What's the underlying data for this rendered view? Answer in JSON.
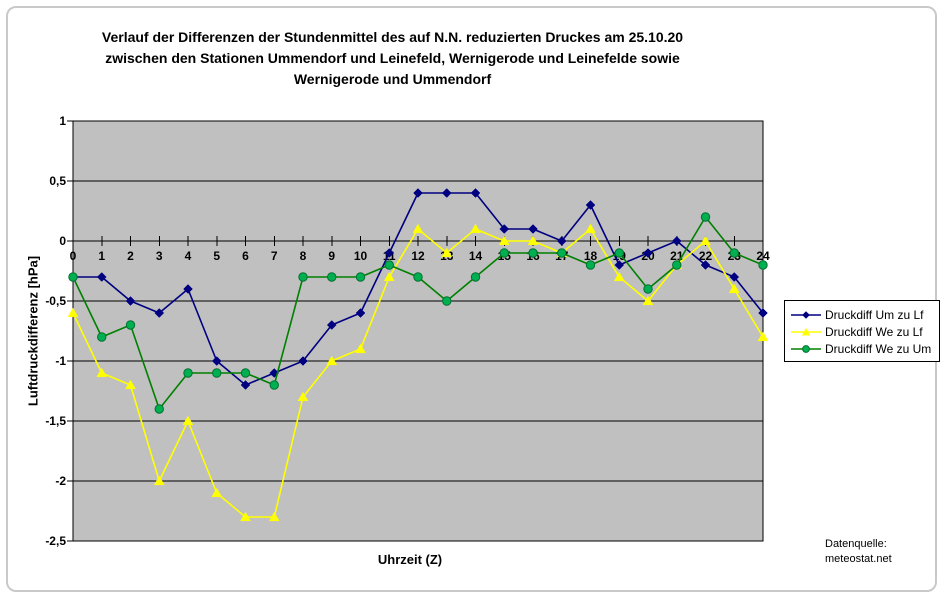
{
  "header": {
    "title_lines": [
      "Verlauf der Differenzen der Stundenmittel des auf N.N. reduzierten Druckes am 25.10.20",
      "zwischen den Stationen Ummendorf und Leinefeld, Wernigerode und Leinefelde sowie",
      "Wernigerode und Ummendorf"
    ]
  },
  "chart_data": {
    "type": "line",
    "title": "Verlauf der Differenzen der Stundenmittel des auf N.N. reduzierten Druckes am 25.10.20 zwischen den Stationen Ummendorf und Leinefeld, Wernigerode und Leinefelde sowie Wernigerode und Ummendorf",
    "xlabel": "Uhrzeit (Z)",
    "ylabel": "Luftdruckdifferenz [hPa]",
    "x": [
      0,
      1,
      2,
      3,
      4,
      5,
      6,
      7,
      8,
      9,
      10,
      11,
      12,
      13,
      14,
      15,
      16,
      17,
      18,
      19,
      20,
      21,
      22,
      23,
      24
    ],
    "series": [
      {
        "name": "Druckdiff Um zu Lf",
        "color": "#000080",
        "marker": "diamond",
        "values": [
          -0.3,
          -0.3,
          -0.5,
          -0.6,
          -0.4,
          -1.0,
          -1.2,
          -1.1,
          -1.0,
          -0.7,
          -0.6,
          -0.1,
          0.4,
          0.4,
          0.4,
          0.1,
          0.1,
          0.0,
          0.3,
          -0.2,
          -0.1,
          0.0,
          -0.2,
          -0.3,
          -0.6
        ]
      },
      {
        "name": "Druckdiff We zu Lf",
        "color": "#FFFF00",
        "marker": "triangle",
        "values": [
          -0.6,
          -1.1,
          -1.2,
          -2.0,
          -1.5,
          -2.1,
          -2.3,
          -2.3,
          -1.3,
          -1.0,
          -0.9,
          -0.3,
          0.1,
          -0.1,
          0.1,
          0.0,
          0.0,
          -0.1,
          0.1,
          -0.3,
          -0.5,
          -0.2,
          0.0,
          -0.4,
          -0.8
        ]
      },
      {
        "name": "Druckdiff We zu Um",
        "color": "#008000",
        "marker": "circle",
        "marker_fill": "#00B050",
        "values": [
          -0.3,
          -0.8,
          -0.7,
          -1.4,
          -1.1,
          -1.1,
          -1.1,
          -1.2,
          -0.3,
          -0.3,
          -0.3,
          -0.2,
          -0.3,
          -0.5,
          -0.3,
          -0.1,
          -0.1,
          -0.1,
          -0.2,
          -0.1,
          -0.4,
          -0.2,
          0.2,
          -0.1,
          -0.2
        ]
      }
    ],
    "ylim": [
      -2.5,
      1
    ],
    "y_ticks": [
      1,
      0.5,
      0,
      -0.5,
      -1,
      -1.5,
      -2,
      -2.5
    ],
    "y_tick_labels": [
      "1",
      "0,5",
      "0",
      "-0,5",
      "-1",
      "-1,5",
      "-2",
      "-2,5"
    ],
    "grid": "horizontal",
    "legend_position": "right",
    "plot_bg": "#C0C0C0",
    "axis_color": "#000000"
  },
  "source": {
    "line1": "Datenquelle:",
    "line2": "meteostat.net"
  }
}
